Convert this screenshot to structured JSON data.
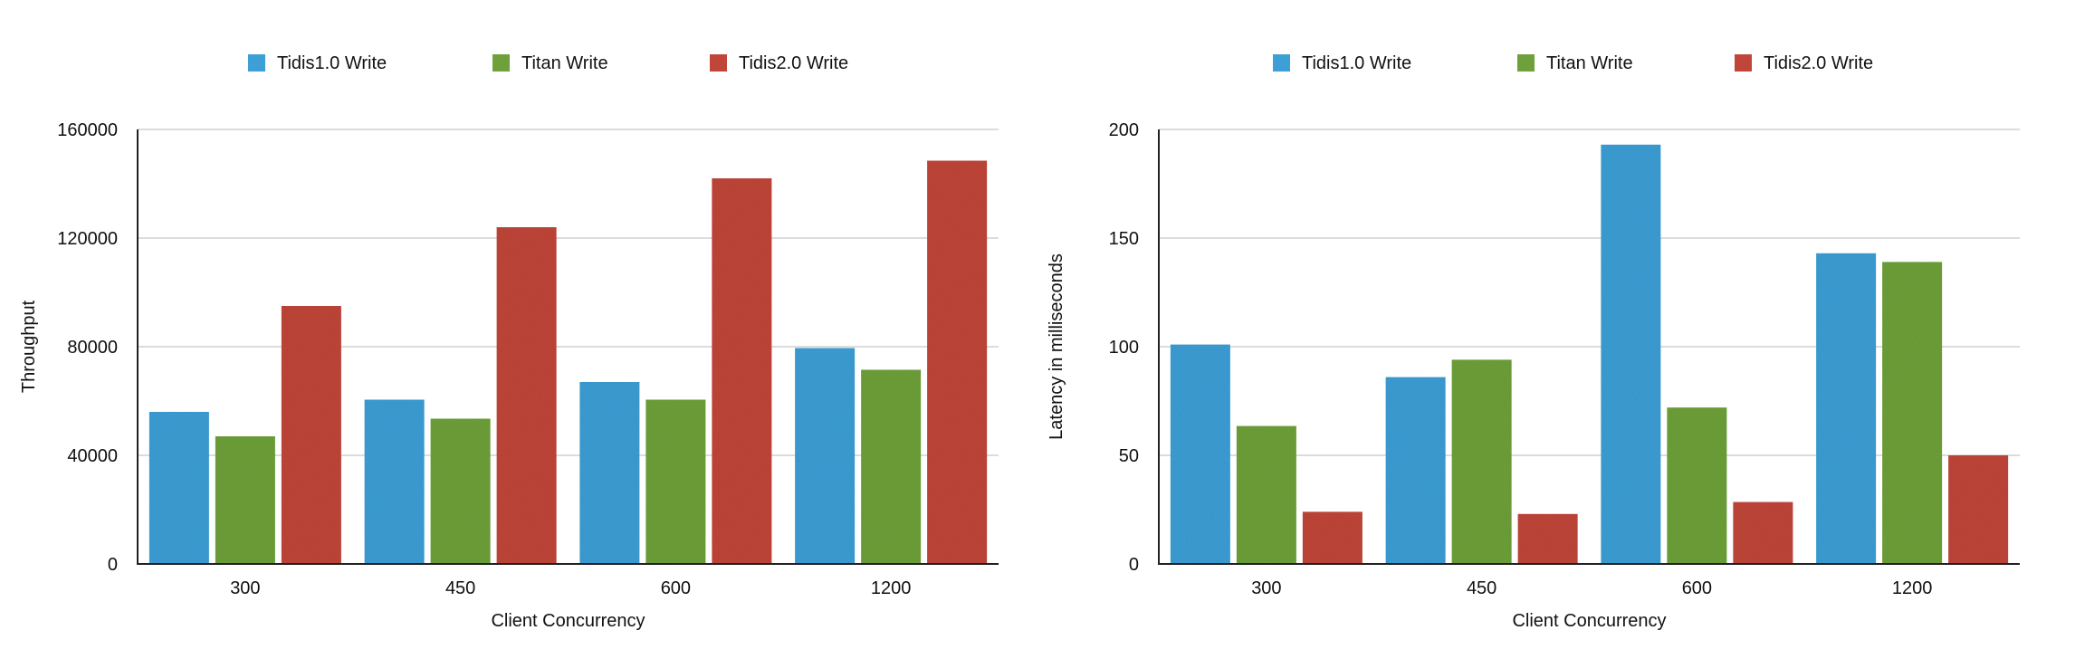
{
  "chart_data": [
    {
      "type": "bar",
      "title": "",
      "xlabel": "Client Concurrency",
      "ylabel": "Throughput",
      "categories": [
        "300",
        "450",
        "600",
        "1200"
      ],
      "series": [
        {
          "name": "Tidis1.0 Write",
          "color": "#3c9fd6",
          "values": [
            56000,
            60500,
            67000,
            79500
          ]
        },
        {
          "name": "Titan Write",
          "color": "#6ea13b",
          "values": [
            47000,
            53500,
            60500,
            71500
          ]
        },
        {
          "name": "Tidis2.0 Write",
          "color": "#c1463a",
          "values": [
            95000,
            124000,
            142000,
            148500
          ]
        }
      ],
      "ylim": [
        0,
        160000
      ],
      "yticks": [
        "0",
        "40000",
        "80000",
        "120000",
        "160000"
      ],
      "grid": true,
      "legend_position": "top"
    },
    {
      "type": "bar",
      "title": "",
      "xlabel": "Client Concurrency",
      "ylabel": "Latency in milliseconds",
      "categories": [
        "300",
        "450",
        "600",
        "1200"
      ],
      "series": [
        {
          "name": "Tidis1.0 Write",
          "color": "#3c9fd6",
          "values": [
            101,
            86,
            193,
            143
          ]
        },
        {
          "name": "Titan Write",
          "color": "#6ea13b",
          "values": [
            63.5,
            94,
            72,
            139
          ]
        },
        {
          "name": "Tidis2.0 Write",
          "color": "#c1463a",
          "values": [
            24,
            23,
            28.5,
            50
          ]
        }
      ],
      "ylim": [
        0,
        200
      ],
      "yticks": [
        "0",
        "50",
        "100",
        "150",
        "200"
      ],
      "grid": true,
      "legend_position": "top"
    }
  ]
}
